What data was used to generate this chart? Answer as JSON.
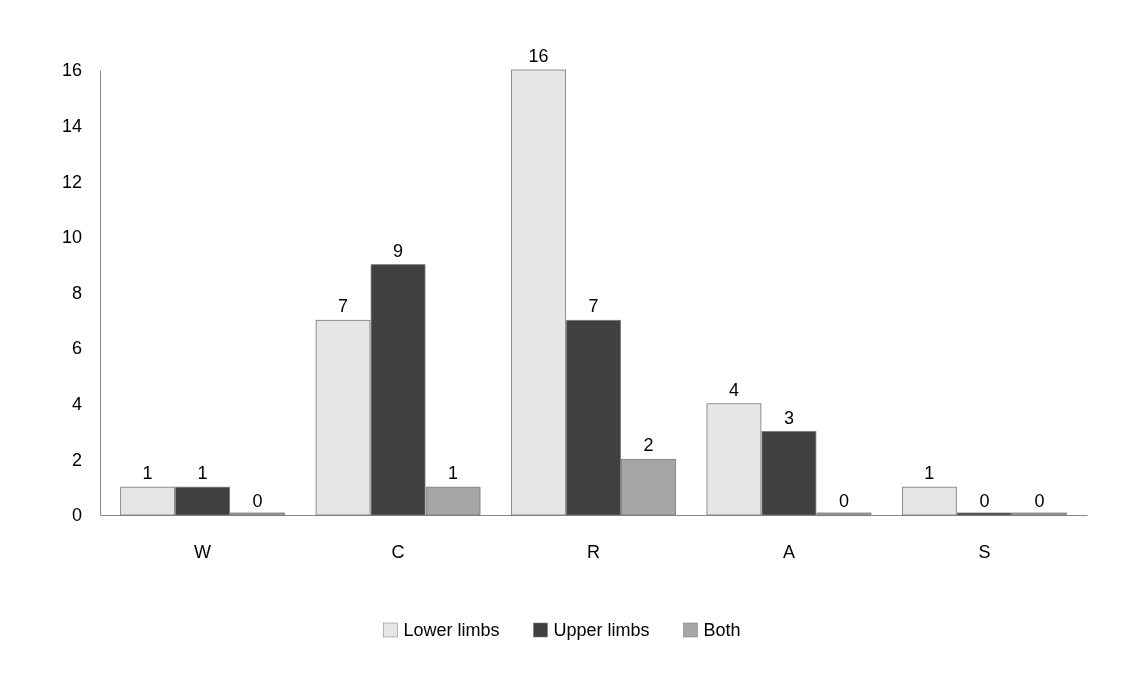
{
  "chart_data": {
    "type": "bar",
    "categories": [
      "W",
      "C",
      "R",
      "A",
      "S"
    ],
    "series": [
      {
        "name": "Lower limbs",
        "color": "#e6e6e6",
        "values": [
          1,
          7,
          16,
          4,
          1
        ]
      },
      {
        "name": "Upper limbs",
        "color": "#404040",
        "values": [
          1,
          9,
          7,
          3,
          0
        ]
      },
      {
        "name": "Both",
        "color": "#a6a6a6",
        "values": [
          0,
          1,
          2,
          0,
          0
        ]
      }
    ],
    "ylim": [
      0,
      16
    ],
    "yticks": [
      0,
      2,
      4,
      6,
      8,
      10,
      12,
      14,
      16
    ],
    "data_labels": true,
    "legend": "bottom",
    "grid": false
  }
}
